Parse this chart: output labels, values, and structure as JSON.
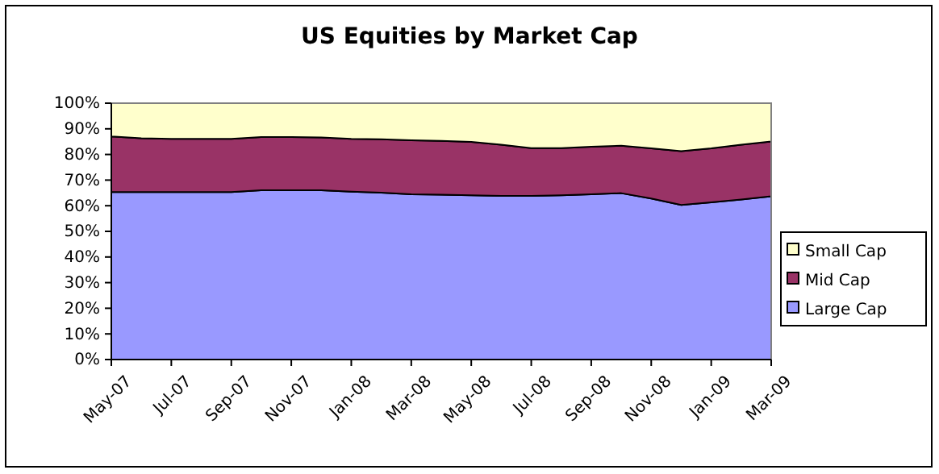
{
  "chart_data": {
    "type": "area",
    "stacked": true,
    "title": "US Equities by Market Cap",
    "categories": [
      "May-07",
      null,
      "Jul-07",
      null,
      "Sep-07",
      null,
      "Nov-07",
      null,
      "Jan-08",
      null,
      "Mar-08",
      null,
      "May-08",
      null,
      "Jul-08",
      null,
      "Sep-08",
      null,
      "Nov-08",
      null,
      "Jan-09",
      null,
      "Mar-09"
    ],
    "series": [
      {
        "name": "Large Cap",
        "color": "#9999ff",
        "values": [
          65.3,
          65.3,
          65.3,
          65.3,
          65.3,
          66.0,
          66.0,
          66.0,
          65.5,
          65.1,
          64.5,
          64.3,
          64.1,
          63.8,
          63.8,
          64.1,
          64.5,
          64.9,
          62.8,
          60.3,
          61.3,
          62.4,
          63.7
        ]
      },
      {
        "name": "Mid Cap",
        "color": "#993366",
        "values": [
          21.7,
          21.0,
          20.8,
          20.8,
          20.8,
          20.8,
          20.8,
          20.6,
          20.6,
          20.8,
          21.0,
          21.0,
          20.8,
          20.0,
          18.7,
          18.4,
          18.5,
          18.5,
          19.6,
          21.0,
          21.1,
          21.4,
          21.4
        ]
      },
      {
        "name": "Small Cap",
        "color": "#ffffcc",
        "values": [
          13.0,
          13.7,
          13.9,
          13.9,
          13.9,
          13.2,
          13.2,
          13.4,
          13.9,
          14.1,
          14.5,
          14.7,
          15.1,
          16.2,
          17.5,
          17.5,
          17.0,
          16.6,
          17.6,
          18.7,
          17.6,
          16.2,
          14.9
        ]
      }
    ],
    "ylim": [
      0,
      100
    ],
    "yticks": [
      {
        "value": 0,
        "label": "0%"
      },
      {
        "value": 10,
        "label": "10%"
      },
      {
        "value": 20,
        "label": "20%"
      },
      {
        "value": 30,
        "label": "30%"
      },
      {
        "value": 40,
        "label": "40%"
      },
      {
        "value": 50,
        "label": "50%"
      },
      {
        "value": 60,
        "label": "60%"
      },
      {
        "value": 70,
        "label": "70%"
      },
      {
        "value": 80,
        "label": "80%"
      },
      {
        "value": 90,
        "label": "90%"
      },
      {
        "value": 100,
        "label": "100%"
      }
    ],
    "legend": "right"
  }
}
